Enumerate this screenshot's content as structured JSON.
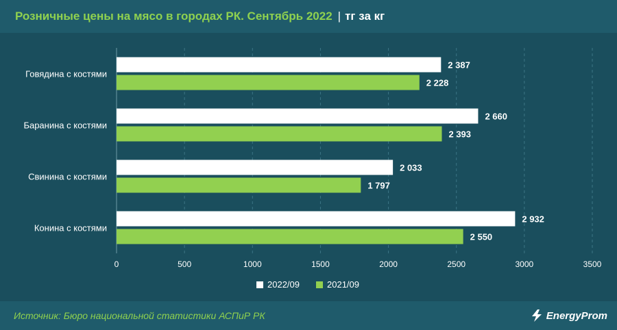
{
  "header": {
    "title": "Розничные цены на мясо в городах РК. Сентябрь 2022",
    "separator": "|",
    "unit": "тг за кг"
  },
  "footer": {
    "source": "Источник: Бюро национальной статистики АСПиР РК",
    "brand": "EnergyProm"
  },
  "colors": {
    "background": "#1f5b6b",
    "panel": "#1a4e5d",
    "accent_green": "#8fd14f",
    "series_2022": "#ffffff",
    "series_2021": "#92d050"
  },
  "chart_data": {
    "type": "bar",
    "orientation": "horizontal",
    "categories": [
      "Говядина с костями",
      "Баранина с костями",
      "Свинина с костями",
      "Конина с костями"
    ],
    "series": [
      {
        "name": "2022/09",
        "values": [
          2387,
          2660,
          2033,
          2932
        ],
        "labels": [
          "2 387",
          "2 660",
          "2 033",
          "2 932"
        ]
      },
      {
        "name": "2021/09",
        "values": [
          2228,
          2393,
          1797,
          2550
        ],
        "labels": [
          "2 228",
          "2 393",
          "1 797",
          "2 550"
        ]
      }
    ],
    "xlim": [
      0,
      3500
    ],
    "xticks": [
      0,
      500,
      1000,
      1500,
      2000,
      2500,
      3000,
      3500
    ],
    "xticklabels": [
      "0",
      "500",
      "1000",
      "1500",
      "2000",
      "2500",
      "3000",
      "3500"
    ],
    "grid": true,
    "legend_position": "bottom"
  }
}
